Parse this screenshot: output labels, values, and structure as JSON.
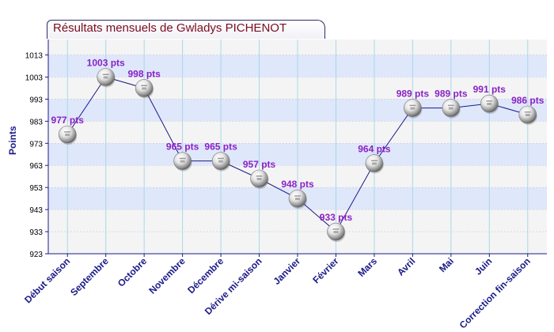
{
  "chart_data": {
    "type": "line",
    "title": "Résultats mensuels de Gwladys PICHENOT",
    "ylabel": "Points",
    "xlabel": "",
    "ylim": [
      923,
      1020
    ],
    "yticks": [
      923,
      933,
      943,
      953,
      963,
      973,
      983,
      993,
      1003,
      1013
    ],
    "categories": [
      "Début saison",
      "Septembre",
      "Octobre",
      "Novembre",
      "Décembre",
      "Dérive mi-saison",
      "Janvier",
      "Février",
      "Mars",
      "Avril",
      "Mai",
      "Juin",
      "Correction fin-saison"
    ],
    "values": [
      977,
      1003,
      998,
      965,
      965,
      957,
      948,
      933,
      964,
      989,
      989,
      991,
      986
    ],
    "labels": [
      "977 pts",
      "1003 pts",
      "998 pts",
      "965 pts",
      "965 pts",
      "957 pts",
      "948 pts",
      "933 pts",
      "964 pts",
      "989 pts",
      "989 pts",
      "991 pts",
      "986 pts"
    ],
    "grid": true,
    "colors": {
      "band_light": "#f4f4f4",
      "band_blue": "#dfe7fb",
      "vgrid": "#a8d8e8",
      "axis": "#1a1a88",
      "line": "#1a1a88",
      "label": "#8a22c4",
      "tick": "#1a1a88"
    }
  }
}
